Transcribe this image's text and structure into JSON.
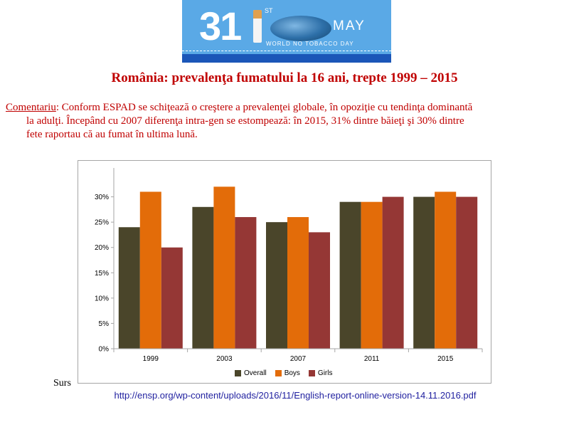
{
  "banner": {
    "number": "31",
    "ordinal": "ST",
    "month": "MAY",
    "caption": "WORLD NO TOBACCO DAY"
  },
  "title": "România: prevalenţa fumatului la 16 ani, trepte 1999 – 2015",
  "comment": {
    "lead": "Comentariu",
    "line1": ": Conform ESPAD se schiţează o creştere a prevalenţei globale, în opoziţie cu tendinţa dominantă",
    "line2": "la adulţi. Începând cu 2007 diferenţa intra-gen se estompează: în 2015, 31% dintre băieţi şi 30% dintre",
    "line3": "fete raportau că au fumat în ultima lună."
  },
  "source": {
    "prefix": "Surs",
    "url": "http://ensp.org/wp-content/uploads/2016/11/English-report-online-version-14.11.2016.pdf"
  },
  "chart_data": {
    "type": "bar",
    "categories": [
      "1999",
      "2003",
      "2007",
      "2011",
      "2015"
    ],
    "series": [
      {
        "name": "Overall",
        "color": "#4a452a",
        "values": [
          24,
          28,
          25,
          29,
          30
        ]
      },
      {
        "name": "Boys",
        "color": "#e36c09",
        "values": [
          31,
          32,
          26,
          29,
          31
        ]
      },
      {
        "name": "Girls",
        "color": "#953735",
        "values": [
          20,
          26,
          23,
          30,
          30
        ]
      }
    ],
    "yticks": [
      "0%",
      "5%",
      "10%",
      "15%",
      "20%",
      "25%",
      "30%"
    ],
    "ylim": [
      0,
      35
    ],
    "legend_position": "bottom",
    "grid": false
  }
}
